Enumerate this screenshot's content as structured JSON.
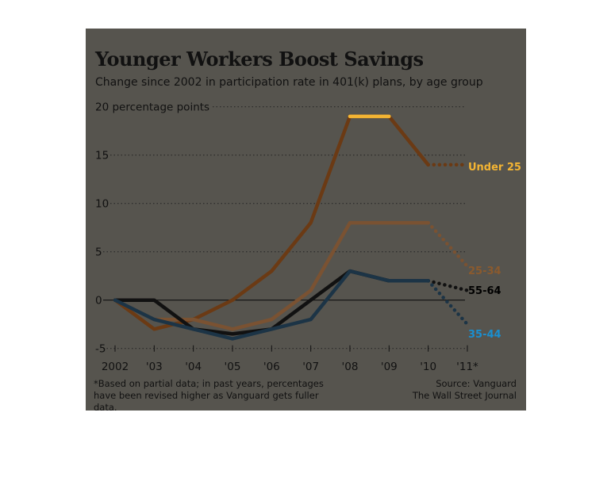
{
  "title": "Younger Workers Boost Savings",
  "subtitle": "Change since 2002 in participation rate in 401(k) plans, by age group",
  "footnote": "*Based on partial data; in past years, percentages have been revised higher as Vanguard gets fuller data.",
  "source": "Source: Vanguard",
  "publisher": "The Wall Street Journal",
  "chart_data": {
    "type": "line",
    "ylabel": "20 percentage points",
    "ylim": [
      -5,
      20
    ],
    "yticks": [
      -5,
      0,
      5,
      10,
      15,
      20
    ],
    "ytick_labels": [
      "-5",
      "0",
      "5",
      "10",
      "15",
      "20 percentage points"
    ],
    "categories": [
      "2002",
      "'03",
      "'04",
      "'05",
      "'06",
      "'07",
      "'08",
      "'09",
      "'10",
      "'11*"
    ],
    "grid": "dotted horizontal",
    "partial_data_category": "'11*",
    "series": [
      {
        "name": "Under 25",
        "color": "#f3b433",
        "values": [
          0,
          -3,
          -2,
          0,
          3,
          8,
          19,
          19,
          14,
          14
        ]
      },
      {
        "name": "25-34",
        "color": "#8a5a2e",
        "values": [
          0,
          -2,
          -2,
          -3,
          -2,
          1,
          8,
          8,
          8,
          3.5
        ]
      },
      {
        "name": "55-64",
        "color": "#000000",
        "values": [
          0,
          0,
          -3,
          -3.5,
          -3,
          0,
          3,
          2,
          2,
          1
        ]
      },
      {
        "name": "35-44",
        "color": "#1a8fd0",
        "values": [
          0,
          -2,
          -3,
          -4,
          -3,
          -2,
          3,
          2,
          2,
          -2.5
        ]
      }
    ]
  }
}
